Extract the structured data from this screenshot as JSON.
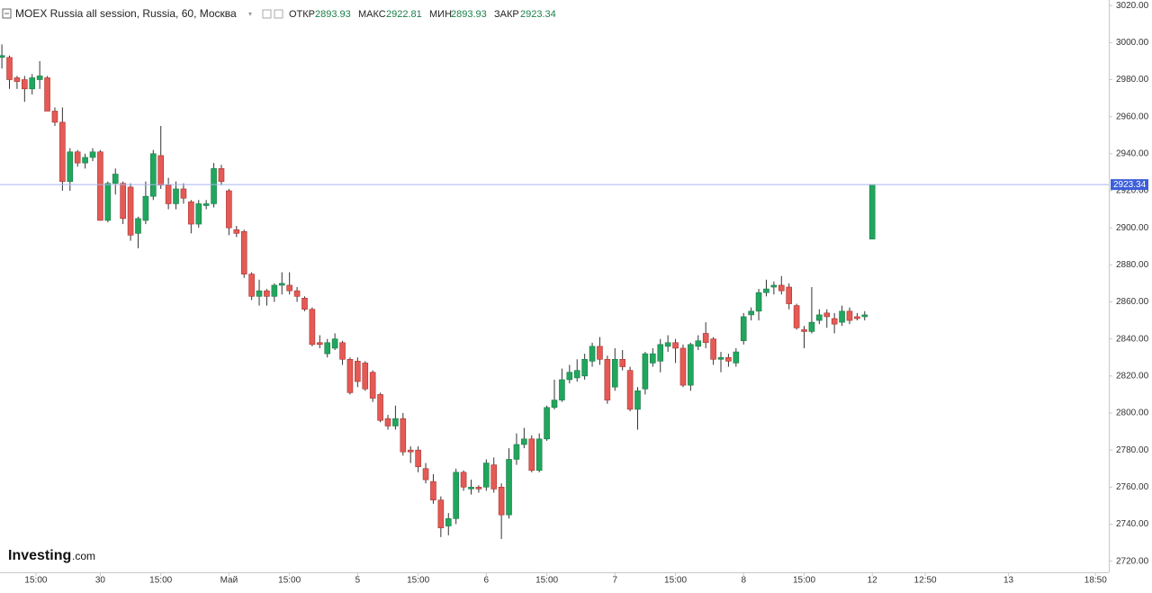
{
  "chart_data": {
    "type": "candlestick",
    "title": "MOEX Russia all session, Russia, 60, Москва",
    "open_label": "ОТКР",
    "high_label": "МАКС",
    "low_label": "МИН",
    "close_label": "ЗАКР",
    "brand": "Investing",
    "brand_suffix": ".com",
    "up_color": "#21a65e",
    "down_color": "#e55a55",
    "open": [
      2992,
      2992,
      2981,
      2980,
      2975,
      2980,
      2981,
      2963,
      2957,
      2925,
      2941,
      2935,
      2938,
      2941,
      2904,
      2924,
      2924,
      2922,
      2897,
      2904,
      2917,
      2939,
      2923,
      2913,
      2921,
      2914,
      2902,
      2912,
      2913,
      2932,
      2920,
      2899,
      2898,
      2875,
      2863,
      2866,
      2863,
      2869,
      2869,
      2866,
      2862,
      2856,
      2838,
      2832,
      2835,
      2838,
      2829,
      2828,
      2827,
      2822,
      2810,
      2797,
      2793,
      2797,
      2780,
      2780,
      2770,
      2763,
      2753,
      2739,
      2743,
      2768,
      2759,
      2760,
      2760,
      2772,
      2760,
      2745,
      2775,
      2783,
      2786,
      2769,
      2786,
      2803,
      2807,
      2818,
      2819,
      2820,
      2828,
      2836,
      2829,
      2814,
      2829,
      2823,
      2802,
      2813,
      2827,
      2828,
      2836,
      2838,
      2835,
      2815,
      2836,
      2843,
      2840,
      2829,
      2830,
      2827,
      2839,
      2853,
      2855,
      2865,
      2868,
      2869,
      2868,
      2858,
      2845,
      2844,
      2850,
      2854,
      2851,
      2849,
      2855,
      2852,
      2852,
      2893.93
    ],
    "high": [
      2999,
      2993,
      2982,
      2982,
      2983,
      2990,
      2982,
      2965,
      2965,
      2943,
      2942,
      2940,
      2943,
      2942,
      2925,
      2932,
      2925,
      2924,
      2906,
      2925,
      2942,
      2955,
      2927,
      2925,
      2924,
      2915,
      2915,
      2915,
      2935,
      2934,
      2921,
      2901,
      2899,
      2876,
      2872,
      2867,
      2870,
      2876,
      2876,
      2868,
      2863,
      2857,
      2842,
      2840,
      2843,
      2839,
      2830,
      2830,
      2828,
      2823,
      2811,
      2799,
      2804,
      2800,
      2782,
      2782,
      2773,
      2767,
      2755,
      2746,
      2770,
      2769,
      2764,
      2761,
      2775,
      2776,
      2762,
      2781,
      2789,
      2792,
      2788,
      2789,
      2804,
      2818,
      2824,
      2826,
      2829,
      2832,
      2838,
      2841,
      2831,
      2835,
      2834,
      2825,
      2814,
      2833,
      2835,
      2840,
      2842,
      2840,
      2837,
      2838,
      2842,
      2849,
      2841,
      2833,
      2832,
      2835,
      2854,
      2857,
      2867,
      2872,
      2871,
      2874,
      2870,
      2859,
      2847,
      2868,
      2856,
      2856,
      2854,
      2858,
      2857,
      2854,
      2855,
      2922.81
    ],
    "low": [
      2986,
      2975,
      2975,
      2968,
      2972,
      2975,
      2963,
      2955,
      2920,
      2920,
      2933,
      2932,
      2936,
      2904,
      2903,
      2918,
      2902,
      2893,
      2889,
      2902,
      2915,
      2921,
      2910,
      2910,
      2913,
      2897,
      2900,
      2910,
      2911,
      2923,
      2896,
      2895,
      2873,
      2861,
      2858,
      2858,
      2860,
      2864,
      2864,
      2860,
      2855,
      2836,
      2835,
      2830,
      2834,
      2826,
      2810,
      2814,
      2812,
      2806,
      2795,
      2791,
      2791,
      2777,
      2773,
      2768,
      2762,
      2751,
      2733,
      2734,
      2740,
      2758,
      2756,
      2757,
      2758,
      2757,
      2732,
      2743,
      2772,
      2781,
      2768,
      2768,
      2785,
      2802,
      2806,
      2816,
      2817,
      2818,
      2825,
      2826,
      2805,
      2812,
      2823,
      2801,
      2791,
      2810,
      2825,
      2822,
      2833,
      2827,
      2814,
      2812,
      2834,
      2835,
      2826,
      2822,
      2825,
      2825,
      2837,
      2850,
      2850,
      2863,
      2864,
      2864,
      2856,
      2845,
      2835,
      2843,
      2848,
      2846,
      2843,
      2847,
      2848,
      2850,
      2850,
      2893.93
    ],
    "close": [
      2993,
      2980,
      2979,
      2975,
      2981,
      2982,
      2963,
      2957,
      2925,
      2941,
      2935,
      2938,
      2941,
      2904,
      2924,
      2929,
      2905,
      2896,
      2905,
      2917,
      2940,
      2923,
      2913,
      2921,
      2916,
      2902,
      2913,
      2913,
      2932,
      2925,
      2900,
      2897,
      2875,
      2863,
      2866,
      2863,
      2869,
      2870,
      2866,
      2863,
      2856,
      2837,
      2837,
      2838,
      2840,
      2829,
      2811,
      2817,
      2813,
      2808,
      2796,
      2793,
      2797,
      2779,
      2779,
      2771,
      2764,
      2753,
      2738,
      2743,
      2768,
      2760,
      2760,
      2759,
      2773,
      2759,
      2745,
      2775,
      2783,
      2786,
      2769,
      2786,
      2803,
      2807,
      2818,
      2822,
      2823,
      2829,
      2836,
      2829,
      2807,
      2829,
      2825,
      2802,
      2812,
      2832,
      2832,
      2837,
      2838,
      2835,
      2815,
      2837,
      2839,
      2838,
      2829,
      2830,
      2828,
      2833,
      2852,
      2855,
      2865,
      2867,
      2869,
      2866,
      2859,
      2846,
      2844,
      2849,
      2853,
      2852,
      2848,
      2855,
      2850,
      2851,
      2853,
      2923.34
    ],
    "xlim": [
      -0.25,
      146.25
    ],
    "xticks": [
      {
        "value": 4.5,
        "label": "15:00"
      },
      {
        "value": 13,
        "label": "30"
      },
      {
        "value": 21,
        "label": "15:00"
      },
      {
        "value": 30,
        "label": "Май"
      },
      {
        "value": 38,
        "label": "15:00"
      },
      {
        "value": 47,
        "label": "5"
      },
      {
        "value": 55,
        "label": "15:00"
      },
      {
        "value": 64,
        "label": "6"
      },
      {
        "value": 72,
        "label": "15:00"
      },
      {
        "value": 81,
        "label": "7"
      },
      {
        "value": 89,
        "label": "15:00"
      },
      {
        "value": 98,
        "label": "8"
      },
      {
        "value": 106,
        "label": "15:00"
      },
      {
        "value": 115,
        "label": "12"
      },
      {
        "value": 122,
        "label": "12:50"
      },
      {
        "value": 133,
        "label": "13"
      },
      {
        "value": 144.5,
        "label": "18:50"
      }
    ],
    "ylim": [
      2714,
      3023
    ],
    "yticks": [
      {
        "value": 2720,
        "label": "2720.00"
      },
      {
        "value": 2740,
        "label": "2740.00"
      },
      {
        "value": 2760,
        "label": "2760.00"
      },
      {
        "value": 2780,
        "label": "2780.00"
      },
      {
        "value": 2800,
        "label": "2800.00"
      },
      {
        "value": 2820,
        "label": "2820.00"
      },
      {
        "value": 2840,
        "label": "2840.00"
      },
      {
        "value": 2860,
        "label": "2860.00"
      },
      {
        "value": 2880,
        "label": "2880.00"
      },
      {
        "value": 2900,
        "label": "2900.00"
      },
      {
        "value": 2920,
        "label": "2920.00"
      },
      {
        "value": 2940,
        "label": "2940.00"
      },
      {
        "value": 2960,
        "label": "2960.00"
      },
      {
        "value": 2980,
        "label": "2980.00"
      },
      {
        "value": 3000,
        "label": "3000.00"
      },
      {
        "value": 3020,
        "label": "3020.00"
      }
    ]
  }
}
